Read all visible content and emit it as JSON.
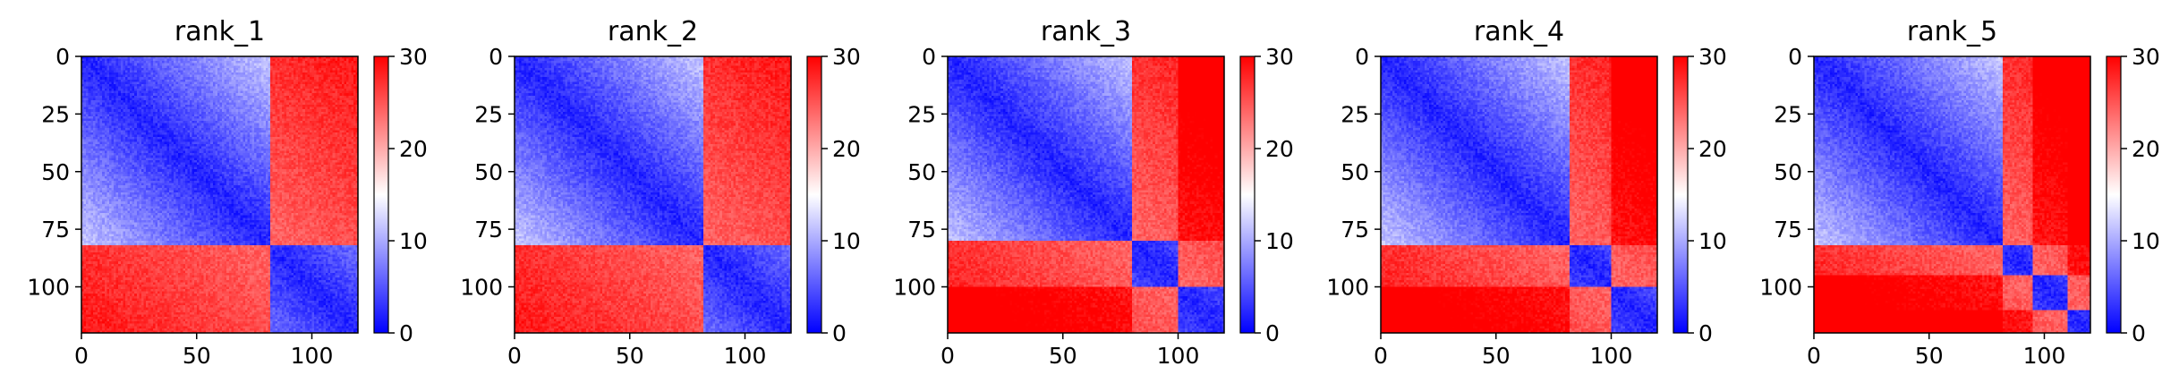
{
  "chart_data": [
    {
      "type": "heatmap",
      "title": "rank_1",
      "colormap": "bwr",
      "vmin": 0,
      "vmax": 30,
      "n": 120,
      "boundaries": [
        82
      ],
      "xticks": [
        0,
        50,
        100
      ],
      "yticks": [
        0,
        25,
        50,
        75,
        100
      ],
      "colorbar_ticks": [
        0,
        10,
        20,
        30
      ],
      "xlim": [
        0,
        120
      ],
      "ylim": [
        120,
        0
      ]
    },
    {
      "type": "heatmap",
      "title": "rank_2",
      "colormap": "bwr",
      "vmin": 0,
      "vmax": 30,
      "n": 120,
      "boundaries": [
        82
      ],
      "xticks": [
        0,
        50,
        100
      ],
      "yticks": [
        0,
        25,
        50,
        75,
        100
      ],
      "colorbar_ticks": [
        0,
        10,
        20,
        30
      ],
      "xlim": [
        0,
        120
      ],
      "ylim": [
        120,
        0
      ]
    },
    {
      "type": "heatmap",
      "title": "rank_3",
      "colormap": "bwr",
      "vmin": 0,
      "vmax": 30,
      "n": 120,
      "boundaries": [
        80,
        100
      ],
      "xticks": [
        0,
        50,
        100
      ],
      "yticks": [
        0,
        25,
        50,
        75,
        100
      ],
      "colorbar_ticks": [
        0,
        10,
        20,
        30
      ],
      "xlim": [
        0,
        120
      ],
      "ylim": [
        120,
        0
      ]
    },
    {
      "type": "heatmap",
      "title": "rank_4",
      "colormap": "bwr",
      "vmin": 0,
      "vmax": 30,
      "n": 120,
      "boundaries": [
        82,
        100
      ],
      "xticks": [
        0,
        50,
        100
      ],
      "yticks": [
        0,
        25,
        50,
        75,
        100
      ],
      "colorbar_ticks": [
        0,
        10,
        20,
        30
      ],
      "xlim": [
        0,
        120
      ],
      "ylim": [
        120,
        0
      ]
    },
    {
      "type": "heatmap",
      "title": "rank_5",
      "colormap": "bwr",
      "vmin": 0,
      "vmax": 30,
      "n": 120,
      "boundaries": [
        82,
        95,
        110
      ],
      "xticks": [
        0,
        50,
        100
      ],
      "yticks": [
        0,
        25,
        50,
        75,
        100
      ],
      "colorbar_ticks": [
        0,
        10,
        20,
        30
      ],
      "xlim": [
        0,
        120
      ],
      "ylim": [
        120,
        0
      ]
    }
  ]
}
